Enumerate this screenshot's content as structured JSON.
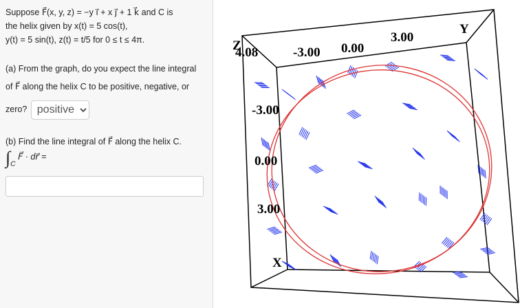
{
  "problem": {
    "intro": [
      "Suppose F⃗(x, y, z) = −y i⃗ + x j⃗ + 1 k⃗ and C is",
      "the helix given by x(t) = 5 cos(t),",
      "y(t) = 5 sin(t), z(t) = t/5 for 0 ≤ t ≤ 4π."
    ],
    "part_a": {
      "lines": [
        "(a) From the graph, do you expect the line integral",
        "of F⃗ along the helix C to be positive, negative, or",
        "zero?"
      ],
      "answer": "positive"
    },
    "part_b": {
      "text": "(b) Find the line integral of F⃗ along the helix C.",
      "integral": "∫",
      "sub": "C",
      "expr": "F⃗ · dr⃗ ="
    }
  },
  "graph": {
    "axis_labels": {
      "z": "Z",
      "y": "Y",
      "x": "X"
    },
    "z_value": "4.08",
    "top_ticks": [
      "-3.00",
      "0.00",
      "3.00"
    ],
    "side_ticks": [
      "-3.00",
      "0.00",
      "3.00"
    ]
  }
}
